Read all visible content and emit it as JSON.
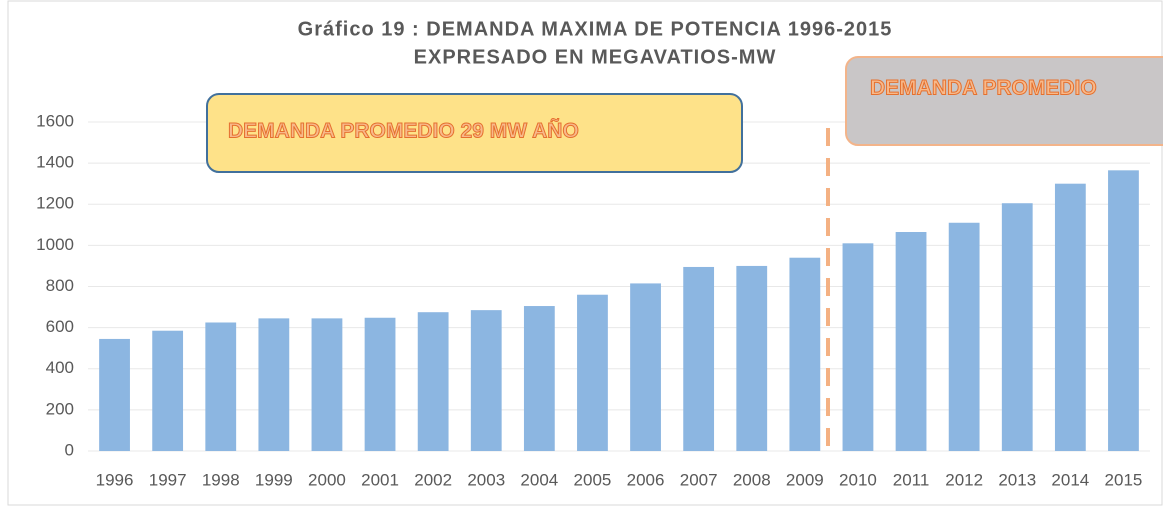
{
  "chart_data": {
    "type": "bar",
    "title": "Gráfico 19 : DEMANDA MAXIMA DE POTENCIA 1996-2015",
    "subtitle": "EXPRESADO EN MEGAVATIOS-MW",
    "annotations": [
      "DEMANDA PROMEDIO 29 MW AÑO",
      "DEMANDA PROMEDIO"
    ],
    "categories": [
      "1996",
      "1997",
      "1998",
      "1999",
      "2000",
      "2001",
      "2002",
      "2003",
      "2004",
      "2005",
      "2006",
      "2007",
      "2008",
      "2009",
      "2010",
      "2011",
      "2012",
      "2013",
      "2014",
      "2015"
    ],
    "values": [
      545,
      585,
      625,
      645,
      645,
      648,
      675,
      685,
      705,
      760,
      815,
      895,
      900,
      940,
      1010,
      1065,
      1110,
      1205,
      1300,
      1365
    ],
    "color": "#8cb6e1",
    "ylim": [
      0,
      1600
    ],
    "yticks": [
      0,
      200,
      400,
      600,
      800,
      1000,
      1200,
      1400,
      1600
    ],
    "grid": true
  }
}
